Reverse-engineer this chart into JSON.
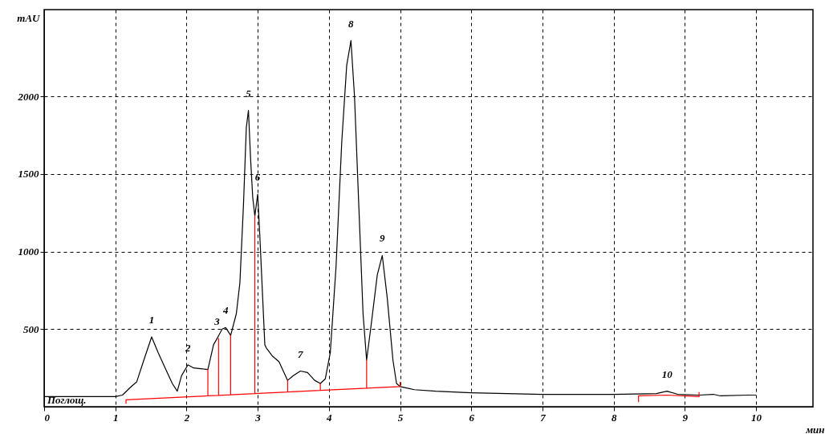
{
  "chart_data": {
    "type": "line",
    "xlabel": "мин",
    "ylabel": "mAU",
    "xlim": [
      0,
      10.8
    ],
    "ylim": [
      0,
      2560
    ],
    "xticks": [
      0,
      1,
      2,
      3,
      4,
      5,
      6,
      7,
      8,
      9,
      10
    ],
    "yticks": [
      500,
      1000,
      1500,
      2000
    ],
    "grid": true,
    "line_style": "solid",
    "series": [
      {
        "color": "#000000",
        "x": [
          0,
          1.0,
          1.1,
          1.2,
          1.3,
          1.4,
          1.51,
          1.6,
          1.7,
          1.8,
          1.87,
          1.93,
          2.02,
          2.1,
          2.2,
          2.3,
          2.38,
          2.43,
          2.5,
          2.55,
          2.62,
          2.7,
          2.75,
          2.8,
          2.84,
          2.87,
          2.9,
          2.93,
          2.96,
          2.98,
          3.0,
          3.03,
          3.07,
          3.1,
          3.12,
          3.2,
          3.3,
          3.42,
          3.5,
          3.6,
          3.7,
          3.8,
          3.88,
          3.95,
          4.02,
          4.1,
          4.18,
          4.25,
          4.31,
          4.36,
          4.42,
          4.48,
          4.53,
          4.6,
          4.68,
          4.75,
          4.82,
          4.9,
          4.95,
          5.0,
          5.2,
          5.5,
          6.0,
          6.5,
          7.0,
          8.0,
          8.6,
          8.75,
          8.9,
          9.2,
          9.4,
          9.5,
          9.9,
          10.0
        ],
        "values": [
          65,
          65,
          75,
          120,
          160,
          300,
          450,
          350,
          250,
          150,
          100,
          200,
          270,
          250,
          245,
          240,
          400,
          440,
          500,
          510,
          460,
          600,
          800,
          1300,
          1800,
          1910,
          1600,
          1350,
          1230,
          1300,
          1370,
          1100,
          700,
          400,
          380,
          330,
          290,
          170,
          200,
          230,
          220,
          170,
          150,
          180,
          350,
          900,
          1700,
          2200,
          2360,
          2000,
          1300,
          600,
          300,
          550,
          850,
          975,
          700,
          300,
          150,
          130,
          110,
          100,
          90,
          85,
          80,
          80,
          85,
          100,
          80,
          75,
          80,
          70,
          75,
          75
        ]
      },
      {
        "color": "#ff0000",
        "x": [
          1.15,
          1.15,
          2.3,
          2.3,
          2.3,
          2.45,
          2.45,
          2.45,
          2.62,
          2.62,
          2.62,
          2.96,
          2.96,
          2.96,
          3.42,
          3.42,
          3.42,
          3.88,
          3.88,
          3.88,
          4.53,
          4.53,
          4.53,
          5.0,
          5.0
        ],
        "values": [
          20,
          45,
          70,
          240,
          70,
          73,
          440,
          73,
          77,
          460,
          77,
          85,
          1230,
          85,
          95,
          170,
          95,
          105,
          150,
          105,
          120,
          300,
          120,
          130,
          160
        ]
      },
      {
        "color": "#ff0000",
        "x": [
          8.35,
          8.35,
          8.75,
          9.2,
          9.2
        ],
        "values": [
          30,
          70,
          75,
          65,
          95
        ]
      }
    ],
    "annotations": [
      {
        "text": "1",
        "x": 1.51,
        "y": 450
      },
      {
        "text": "2",
        "x": 2.02,
        "y": 270
      },
      {
        "text": "3",
        "x": 2.43,
        "y": 440
      },
      {
        "text": "4",
        "x": 2.55,
        "y": 510
      },
      {
        "text": "5",
        "x": 2.87,
        "y": 1910
      },
      {
        "text": "6",
        "x": 3.0,
        "y": 1370
      },
      {
        "text": "7",
        "x": 3.6,
        "y": 230
      },
      {
        "text": "8",
        "x": 4.31,
        "y": 2360
      },
      {
        "text": "9",
        "x": 4.75,
        "y": 975
      },
      {
        "text": "10",
        "x": 8.75,
        "y": 100
      },
      "Поглощ."
    ]
  }
}
